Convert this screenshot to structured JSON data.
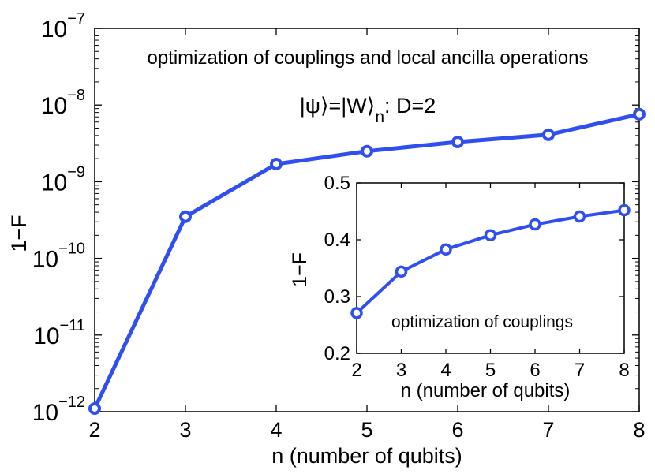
{
  "colors": {
    "series": "#2f4ff0",
    "axes": "#000000",
    "background": "#ffffff",
    "marker_fill": "#ffffff"
  },
  "chart_data": [
    {
      "type": "line",
      "title": "optimization of couplings and local ancilla operations",
      "subtitle": "|ψ⟩=|W⟩n: D=2",
      "subtitle_parts": {
        "lhs": "|ψ⟩=|W⟩",
        "sub": "n",
        "rhs": ": D=2"
      },
      "xlabel": "n (number of qubits)",
      "ylabel": "1−F",
      "yscale": "log",
      "xlim": [
        2,
        8
      ],
      "ylim": [
        1e-12,
        1e-07
      ],
      "xticks": [
        "2",
        "3",
        "4",
        "5",
        "6",
        "7",
        "8"
      ],
      "yticks": [
        {
          "base": "10",
          "exp": "−12",
          "value": 1e-12
        },
        {
          "base": "10",
          "exp": "−11",
          "value": 1e-11
        },
        {
          "base": "10",
          "exp": "−10",
          "value": 1e-10
        },
        {
          "base": "10",
          "exp": "−9",
          "value": 1e-09
        },
        {
          "base": "10",
          "exp": "−8",
          "value": 1e-08
        },
        {
          "base": "10",
          "exp": "−7",
          "value": 1e-07
        }
      ],
      "grid": false,
      "x": [
        2,
        3,
        4,
        5,
        6,
        7,
        8
      ],
      "y": [
        1.1e-12,
        3.5e-10,
        1.7e-09,
        2.5e-09,
        3.3e-09,
        4.1e-09,
        7.6e-09
      ]
    },
    {
      "type": "line",
      "title": "optimization of couplings",
      "xlabel": "n (number of qubits)",
      "ylabel": "1−F",
      "yscale": "linear",
      "xlim": [
        2,
        8
      ],
      "ylim": [
        0.2,
        0.5
      ],
      "xticks": [
        "2",
        "3",
        "4",
        "5",
        "6",
        "7",
        "8"
      ],
      "yticks": [
        "0.2",
        "0.3",
        "0.4",
        "0.5"
      ],
      "grid": false,
      "x": [
        2,
        3,
        4,
        5,
        6,
        7,
        8
      ],
      "y": [
        0.271,
        0.344,
        0.383,
        0.408,
        0.427,
        0.441,
        0.452
      ]
    }
  ]
}
